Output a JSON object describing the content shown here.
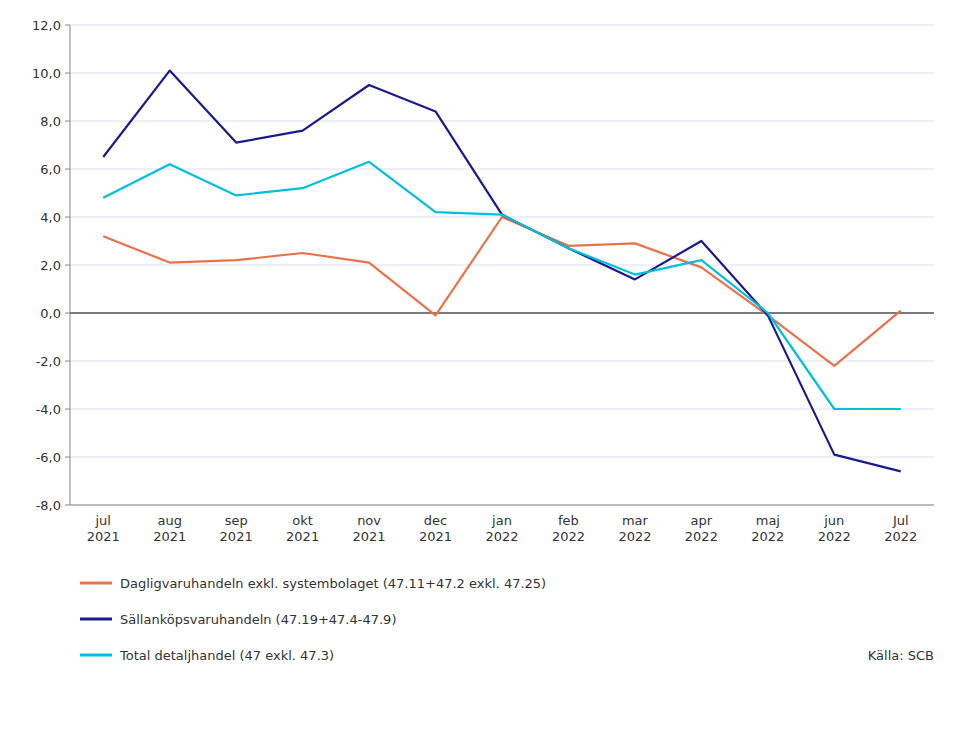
{
  "chart_data": {
    "type": "line",
    "categories": [
      "jul\n2021",
      "aug\n2021",
      "sep\n2021",
      "okt\n2021",
      "nov\n2021",
      "dec\n2021",
      "jan\n2022",
      "feb\n2022",
      "mar\n2022",
      "apr\n2022",
      "maj\n2022",
      "jun\n2022",
      "Jul\n2022"
    ],
    "series": [
      {
        "name": "Dagligvaruhandeln exkl. systembolaget (47.11+47.2 exkl. 47.25)",
        "color": "#E8734A",
        "values": [
          3.2,
          2.1,
          2.2,
          2.5,
          2.1,
          -0.1,
          4.0,
          2.8,
          2.9,
          1.9,
          -0.1,
          -2.2,
          0.1
        ]
      },
      {
        "name": "Sällanköpsvaruhandeln (47.19+47.4-47.9)",
        "color": "#1A1A8C",
        "values": [
          6.5,
          10.1,
          7.1,
          7.6,
          9.5,
          8.4,
          4.1,
          2.7,
          1.4,
          3.0,
          -0.1,
          -5.9,
          -6.6
        ]
      },
      {
        "name": "Total detaljhandel (47 exkl. 47.3)",
        "color": "#00BFDF",
        "values": [
          4.8,
          6.2,
          4.9,
          5.2,
          6.3,
          4.2,
          4.1,
          2.7,
          1.6,
          2.2,
          0.0,
          -4.0,
          -4.0
        ]
      }
    ],
    "ylim": [
      -8,
      12
    ],
    "yticks": [
      {
        "value": -8,
        "label": "-8,0"
      },
      {
        "value": -6,
        "label": "-6,0"
      },
      {
        "value": -4,
        "label": "-4,0"
      },
      {
        "value": -2,
        "label": "-2,0"
      },
      {
        "value": 0,
        "label": "0,0"
      },
      {
        "value": 2,
        "label": "2,0"
      },
      {
        "value": 4,
        "label": "4,0"
      },
      {
        "value": 6,
        "label": "6,0"
      },
      {
        "value": 8,
        "label": "8,0"
      },
      {
        "value": 10,
        "label": "10,0"
      },
      {
        "value": 12,
        "label": "12,0"
      }
    ],
    "grid": true,
    "legend": "bottom",
    "annotations": [
      "Källa: SCB"
    ]
  }
}
